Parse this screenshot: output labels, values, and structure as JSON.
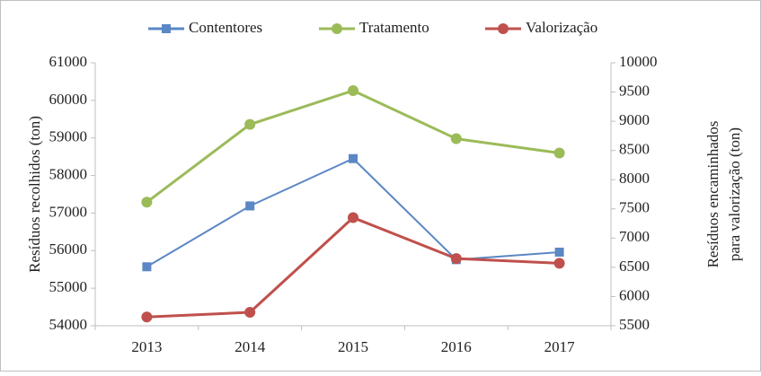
{
  "chart_data": {
    "type": "line",
    "categories": [
      "2013",
      "2014",
      "2015",
      "2016",
      "2017"
    ],
    "series": [
      {
        "name": "Contentores",
        "color": "#5b87c5",
        "marker": "square",
        "axis": "y",
        "values": [
          55570,
          57190,
          58450,
          55760,
          55960
        ]
      },
      {
        "name": "Tratamento",
        "color": "#9bbb59",
        "marker": "circle",
        "axis": "y",
        "values": [
          57290,
          59360,
          60260,
          58980,
          58600
        ]
      },
      {
        "name": "Valorização",
        "color": "#c0504d",
        "marker": "circle",
        "axis": "y2",
        "values": [
          5650,
          5730,
          7350,
          6650,
          6570
        ]
      }
    ],
    "ylabel": "Resíduos recolhidos (ton)",
    "y2label": [
      "Resíduos encaminhados",
      "para valorização (ton)"
    ],
    "ylim": [
      54000,
      61000
    ],
    "yticks": [
      54000,
      55000,
      56000,
      57000,
      58000,
      59000,
      60000,
      61000
    ],
    "y2lim": [
      5500,
      10000
    ],
    "y2ticks": [
      5500,
      6000,
      6500,
      7000,
      7500,
      8000,
      8500,
      9000,
      9500,
      10000
    ],
    "grid": false,
    "legend": "top"
  }
}
